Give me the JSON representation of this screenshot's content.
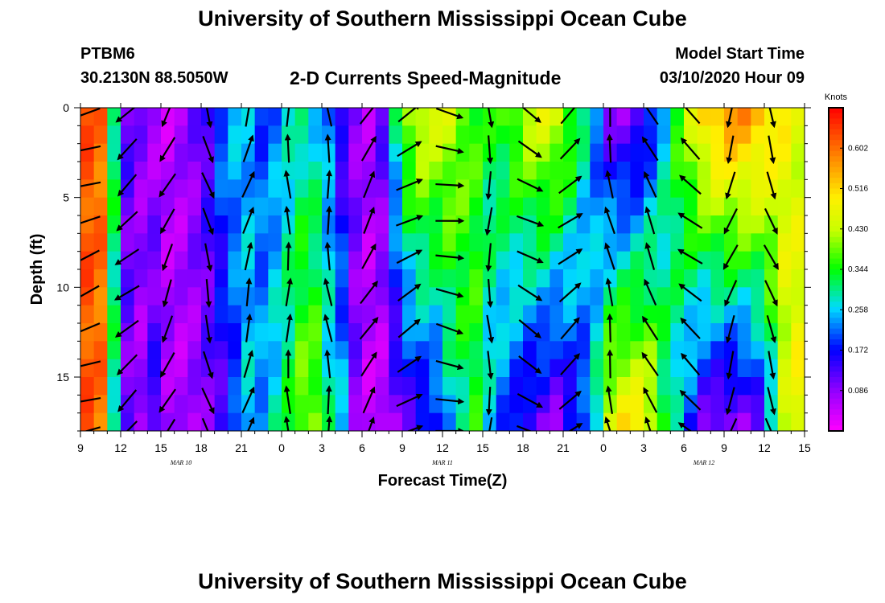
{
  "header": {
    "title": "University of Southern Mississippi Ocean Cube",
    "station": "PTBM6",
    "coords": "30.2130N 88.5050W",
    "subtitle": "2-D Currents Speed-Magnitude",
    "model_start_label": "Model Start Time",
    "model_start_value": "03/10/2020 Hour 09"
  },
  "footer": {
    "title": "University of Southern Mississippi Ocean Cube"
  },
  "chart_data": {
    "type": "heatmap",
    "xlabel": "Forecast Time(Z)",
    "ylabel": "Depth (ft)",
    "x_range_hours": [
      0,
      54
    ],
    "y_range": [
      0,
      18
    ],
    "y_reversed": true,
    "x_ticks": [
      {
        "h": 0,
        "label": "9"
      },
      {
        "h": 3,
        "label": "12"
      },
      {
        "h": 6,
        "label": "15"
      },
      {
        "h": 9,
        "label": "18"
      },
      {
        "h": 12,
        "label": "21"
      },
      {
        "h": 15,
        "label": "0"
      },
      {
        "h": 18,
        "label": "3"
      },
      {
        "h": 21,
        "label": "6"
      },
      {
        "h": 24,
        "label": "9"
      },
      {
        "h": 27,
        "label": "12"
      },
      {
        "h": 30,
        "label": "15"
      },
      {
        "h": 33,
        "label": "18"
      },
      {
        "h": 36,
        "label": "21"
      },
      {
        "h": 39,
        "label": "0"
      },
      {
        "h": 42,
        "label": "3"
      },
      {
        "h": 45,
        "label": "6"
      },
      {
        "h": 48,
        "label": "9"
      },
      {
        "h": 51,
        "label": "12"
      },
      {
        "h": 54,
        "label": "15"
      }
    ],
    "date_labels": [
      {
        "h": 7.5,
        "label": "MAR 10"
      },
      {
        "h": 27,
        "label": "MAR 11"
      },
      {
        "h": 46.5,
        "label": "MAR 12"
      }
    ],
    "y_ticks": [
      0,
      5,
      10,
      15
    ],
    "colorbar": {
      "title": "Knots",
      "min": 0,
      "max": 0.688,
      "ticks": [
        0.602,
        0.516,
        0.43,
        0.344,
        0.258,
        0.172,
        0.086
      ]
    },
    "time_steps": [
      {
        "h": 1,
        "surf": 0.62,
        "bot": 0.62,
        "dir": 250
      },
      {
        "h": 2,
        "surf": 0.6,
        "bot": 0.6,
        "dir": 245
      },
      {
        "h": 3,
        "surf": 0.32,
        "bot": 0.3,
        "dir": 240
      },
      {
        "h": 4,
        "surf": 0.12,
        "bot": 0.1,
        "dir": 230
      },
      {
        "h": 5,
        "surf": 0.09,
        "bot": 0.07,
        "dir": 210
      },
      {
        "h": 6,
        "surf": 0.06,
        "bot": 0.15,
        "dir": 200
      },
      {
        "h": 7,
        "surf": 0.05,
        "bot": 0.08,
        "dir": 205
      },
      {
        "h": 8,
        "surf": 0.07,
        "bot": 0.06,
        "dir": 190
      },
      {
        "h": 9,
        "surf": 0.1,
        "bot": 0.07,
        "dir": 175
      },
      {
        "h": 10,
        "surf": 0.14,
        "bot": 0.1,
        "dir": 165
      },
      {
        "h": 11,
        "surf": 0.22,
        "bot": 0.12,
        "dir": 160
      },
      {
        "h": 12,
        "surf": 0.25,
        "bot": 0.18,
        "dir": 10
      },
      {
        "h": 13,
        "surf": 0.24,
        "bot": 0.26,
        "dir": 15
      },
      {
        "h": 14,
        "surf": 0.2,
        "bot": 0.24,
        "dir": 5
      },
      {
        "h": 15,
        "surf": 0.22,
        "bot": 0.28,
        "dir": 0
      },
      {
        "h": 16,
        "surf": 0.26,
        "bot": 0.33,
        "dir": 0
      },
      {
        "h": 17,
        "surf": 0.28,
        "bot": 0.4,
        "dir": 355
      },
      {
        "h": 18,
        "surf": 0.26,
        "bot": 0.4,
        "dir": 350
      },
      {
        "h": 19,
        "surf": 0.22,
        "bot": 0.3,
        "dir": 355
      },
      {
        "h": 20,
        "surf": 0.12,
        "bot": 0.26,
        "dir": 5
      },
      {
        "h": 21,
        "surf": 0.09,
        "bot": 0.1,
        "dir": 15
      },
      {
        "h": 22,
        "surf": 0.07,
        "bot": 0.05,
        "dir": 30
      },
      {
        "h": 23,
        "surf": 0.12,
        "bot": 0.04,
        "dir": 35
      },
      {
        "h": 24,
        "surf": 0.3,
        "bot": 0.08,
        "dir": 40
      },
      {
        "h": 25,
        "surf": 0.42,
        "bot": 0.12,
        "dir": 60
      },
      {
        "h": 26,
        "surf": 0.46,
        "bot": 0.14,
        "dir": 70
      },
      {
        "h": 27,
        "surf": 0.45,
        "bot": 0.16,
        "dir": 80
      },
      {
        "h": 28,
        "surf": 0.44,
        "bot": 0.24,
        "dir": 100
      },
      {
        "h": 29,
        "surf": 0.4,
        "bot": 0.3,
        "dir": 150
      },
      {
        "h": 30,
        "surf": 0.36,
        "bot": 0.34,
        "dir": 175
      },
      {
        "h": 31,
        "surf": 0.34,
        "bot": 0.25,
        "dir": 180
      },
      {
        "h": 32,
        "surf": 0.36,
        "bot": 0.2,
        "dir": 175
      },
      {
        "h": 33,
        "surf": 0.4,
        "bot": 0.16,
        "dir": 160
      },
      {
        "h": 34,
        "surf": 0.44,
        "bot": 0.12,
        "dir": 120
      },
      {
        "h": 35,
        "surf": 0.46,
        "bot": 0.1,
        "dir": 100
      },
      {
        "h": 36,
        "surf": 0.45,
        "bot": 0.08,
        "dir": 70
      },
      {
        "h": 37,
        "surf": 0.38,
        "bot": 0.14,
        "dir": 50
      },
      {
        "h": 38,
        "surf": 0.3,
        "bot": 0.18,
        "dir": 35
      },
      {
        "h": 39,
        "surf": 0.2,
        "bot": 0.3,
        "dir": 20
      },
      {
        "h": 40,
        "surf": 0.1,
        "bot": 0.46,
        "dir": 350
      },
      {
        "h": 41,
        "surf": 0.08,
        "bot": 0.5,
        "dir": 345
      },
      {
        "h": 42,
        "surf": 0.1,
        "bot": 0.5,
        "dir": 340
      },
      {
        "h": 43,
        "surf": 0.16,
        "bot": 0.46,
        "dir": 335
      },
      {
        "h": 44,
        "surf": 0.26,
        "bot": 0.34,
        "dir": 330
      },
      {
        "h": 45,
        "surf": 0.36,
        "bot": 0.26,
        "dir": 320
      },
      {
        "h": 46,
        "surf": 0.44,
        "bot": 0.18,
        "dir": 310
      },
      {
        "h": 47,
        "surf": 0.52,
        "bot": 0.1,
        "dir": 240
      },
      {
        "h": 48,
        "surf": 0.56,
        "bot": 0.08,
        "dir": 220
      },
      {
        "h": 49,
        "surf": 0.58,
        "bot": 0.07,
        "dir": 200
      },
      {
        "h": 50,
        "surf": 0.58,
        "bot": 0.08,
        "dir": 190
      },
      {
        "h": 51,
        "surf": 0.56,
        "bot": 0.12,
        "dir": 170
      },
      {
        "h": 52,
        "surf": 0.52,
        "bot": 0.24,
        "dir": 160
      },
      {
        "h": 53,
        "surf": 0.48,
        "bot": 0.42,
        "dir": 165
      },
      {
        "h": 54,
        "surf": 0.44,
        "bot": 0.48,
        "dir": 170
      }
    ]
  }
}
